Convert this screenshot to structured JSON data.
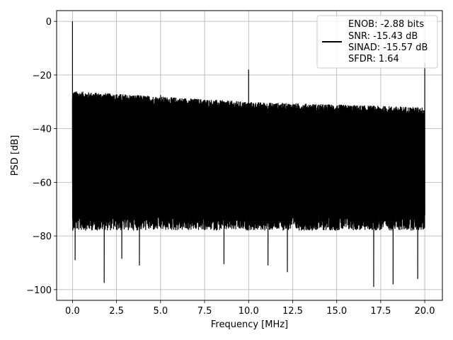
{
  "chart_data": {
    "type": "line",
    "title": "",
    "xlabel": "Frequency [MHz]",
    "ylabel": "PSD [dB]",
    "xlim": [
      -0.9,
      21.0
    ],
    "ylim": [
      -104,
      4
    ],
    "x_ticks": [
      0.0,
      2.5,
      5.0,
      7.5,
      10.0,
      12.5,
      15.0,
      17.5,
      20.0
    ],
    "x_tick_labels": [
      "0.0",
      "2.5",
      "5.0",
      "7.5",
      "10.0",
      "12.5",
      "15.0",
      "17.5",
      "20.0"
    ],
    "y_ticks": [
      0,
      -20,
      -40,
      -60,
      -80,
      -100
    ],
    "y_tick_labels": [
      "0",
      "−20",
      "−40",
      "−60",
      "−80",
      "−100"
    ],
    "grid": true,
    "legend_position": "top-right",
    "series": [
      {
        "name": "",
        "color": "#000000",
        "peaks": [
          {
            "x": 0.0,
            "y": 0.0
          },
          {
            "x": 2.5,
            "y": -27.5
          },
          {
            "x": 5.0,
            "y": -27.5
          },
          {
            "x": 10.0,
            "y": -18.0
          },
          {
            "x": 20.0,
            "y": -15.5
          }
        ],
        "noise_ceiling": [
          {
            "x": 0.1,
            "y": -29
          },
          {
            "x": 5.0,
            "y": -31
          },
          {
            "x": 10.0,
            "y": -33
          },
          {
            "x": 15.0,
            "y": -34
          },
          {
            "x": 20.0,
            "y": -35
          }
        ],
        "noise_body_floor": -72,
        "deep_dips": [
          {
            "x": 0.15,
            "y": -89
          },
          {
            "x": 1.8,
            "y": -97.5
          },
          {
            "x": 2.8,
            "y": -88.5
          },
          {
            "x": 3.8,
            "y": -91
          },
          {
            "x": 8.6,
            "y": -90.5
          },
          {
            "x": 11.1,
            "y": -91
          },
          {
            "x": 12.2,
            "y": -93.5
          },
          {
            "x": 17.1,
            "y": -99
          },
          {
            "x": 18.2,
            "y": -98
          },
          {
            "x": 19.6,
            "y": -96
          }
        ]
      }
    ],
    "legend": {
      "line_color": "#000000",
      "lines": [
        "ENOB: -2.88 bits",
        "SNR: -15.43 dB",
        "SINAD: -15.57 dB",
        "SFDR: 1.64"
      ]
    }
  }
}
